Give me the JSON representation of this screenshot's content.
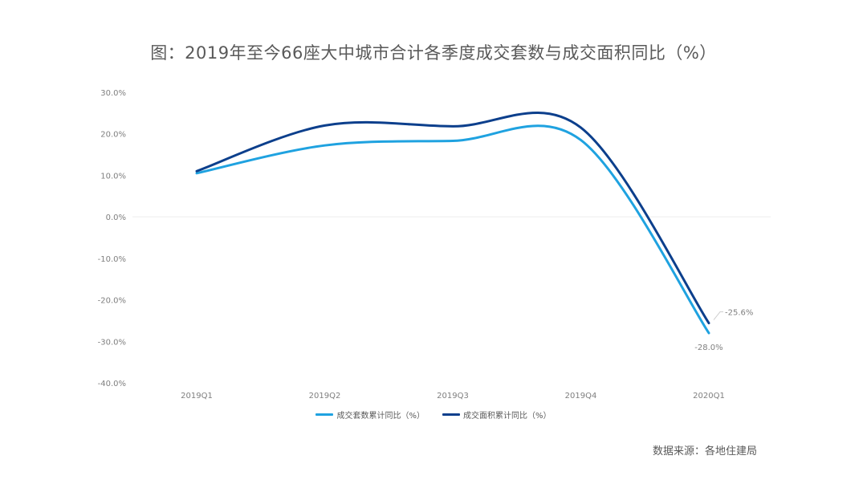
{
  "title": "图：2019年至今66座大中城市合计各季度成交套数与成交面积同比（%）",
  "source": "数据来源：各地住建局",
  "chart_data": {
    "type": "line",
    "categories": [
      "2019Q1",
      "2019Q2",
      "2019Q3",
      "2019Q4",
      "2020Q1"
    ],
    "series": [
      {
        "name": "成交套数累计同比（%）",
        "color": "#1fa2e0",
        "values": [
          10.5,
          17.2,
          18.3,
          18.5,
          -28.0
        ]
      },
      {
        "name": "成交面积累计同比（%）",
        "color": "#0c3f8c",
        "values": [
          11.0,
          22.0,
          21.8,
          21.5,
          -25.6
        ]
      }
    ],
    "data_labels": [
      {
        "series": 0,
        "index": 4,
        "text": "-28.0%"
      },
      {
        "series": 1,
        "index": 4,
        "text": "-25.6%"
      }
    ],
    "ylim": [
      -40,
      30
    ],
    "yticks": [
      "30.0%",
      "20.0%",
      "10.0%",
      "0.0%",
      "-10.0%",
      "-20.0%",
      "-30.0%",
      "-40.0%"
    ],
    "grid": false,
    "legend_position": "bottom",
    "smooth": true
  }
}
